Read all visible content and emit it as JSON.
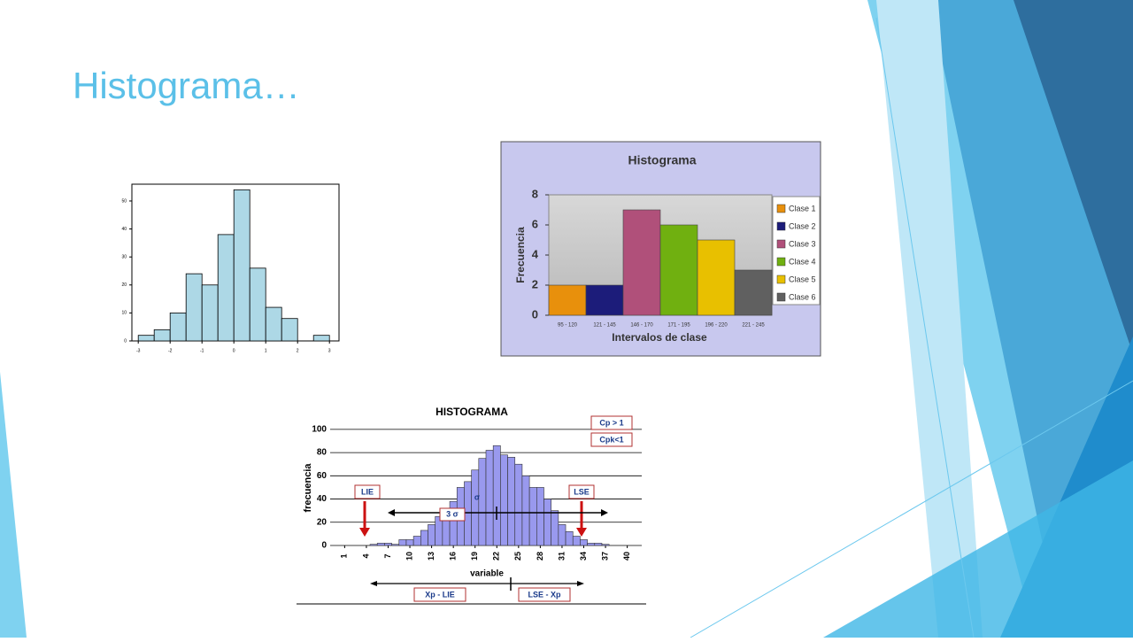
{
  "slide_title": "Histograma…",
  "chart_data": [
    {
      "type": "histogram",
      "bins": [
        -3,
        -2.5,
        -2,
        -1.5,
        -1,
        -0.5,
        0,
        0.5,
        1,
        1.5,
        2,
        2.5,
        3
      ],
      "values": [
        2,
        4,
        10,
        24,
        20,
        38,
        54,
        26,
        12,
        8,
        0,
        2
      ],
      "color": "#add8e6",
      "xlim": [
        -3.2,
        3.3
      ],
      "xticks": [
        -3,
        -2,
        -1,
        0,
        1,
        2,
        3
      ],
      "ylim": [
        0,
        56
      ],
      "yticks": [
        0,
        10,
        20,
        30,
        40,
        50
      ]
    },
    {
      "type": "bar",
      "title": "Histograma",
      "y_label": "Frecuencia",
      "x_label": "Intervalos de clase",
      "categories": [
        "95 - 120",
        "121 - 145",
        "146 - 170",
        "171 - 195",
        "196 - 220",
        "221 - 245"
      ],
      "values": [
        2,
        2,
        7,
        6,
        5,
        3
      ],
      "colors": [
        "#e8900c",
        "#1c1c7a",
        "#b0507a",
        "#70b010",
        "#e8c000",
        "#606060"
      ],
      "legend_labels": [
        "Clase 1",
        "Clase 2",
        "Clase 3",
        "Clase 4",
        "Clase 5",
        "Clase 6"
      ],
      "ylim": [
        0,
        8
      ],
      "yticks": [
        0,
        2,
        4,
        6,
        8
      ],
      "legend": "right"
    },
    {
      "type": "columns",
      "title": "HISTOGRAMA",
      "y_label": "frecuencia",
      "x_label": "variable",
      "x": [
        1,
        2,
        3,
        4,
        5,
        6,
        7,
        8,
        9,
        10,
        11,
        12,
        13,
        14,
        15,
        16,
        17,
        18,
        19,
        20,
        21,
        22,
        23,
        24,
        25,
        26,
        27,
        28,
        29,
        30,
        31,
        32,
        33,
        34,
        35,
        36,
        37,
        38,
        39,
        40
      ],
      "values": [
        0,
        0,
        0,
        0,
        1,
        2,
        2,
        1,
        5,
        5,
        8,
        13,
        18,
        25,
        30,
        38,
        50,
        55,
        65,
        75,
        82,
        86,
        78,
        76,
        70,
        60,
        50,
        50,
        40,
        30,
        18,
        12,
        8,
        5,
        2,
        2,
        1,
        0,
        0,
        0
      ],
      "color": "#9999ee",
      "xlim": [
        -1,
        42
      ],
      "xticks": [
        1,
        4,
        7,
        10,
        13,
        16,
        19,
        22,
        25,
        28,
        31,
        34,
        37,
        40
      ],
      "ylim": [
        0,
        106
      ],
      "yticks": [
        0,
        20,
        40,
        60,
        80,
        100
      ],
      "grid": true,
      "annotations": [
        "Cp > 1",
        "Cpk<1",
        "LIE",
        "LSE",
        "3 σ",
        "σ",
        "Xp - LIE",
        "LSE - Xp"
      ]
    }
  ]
}
